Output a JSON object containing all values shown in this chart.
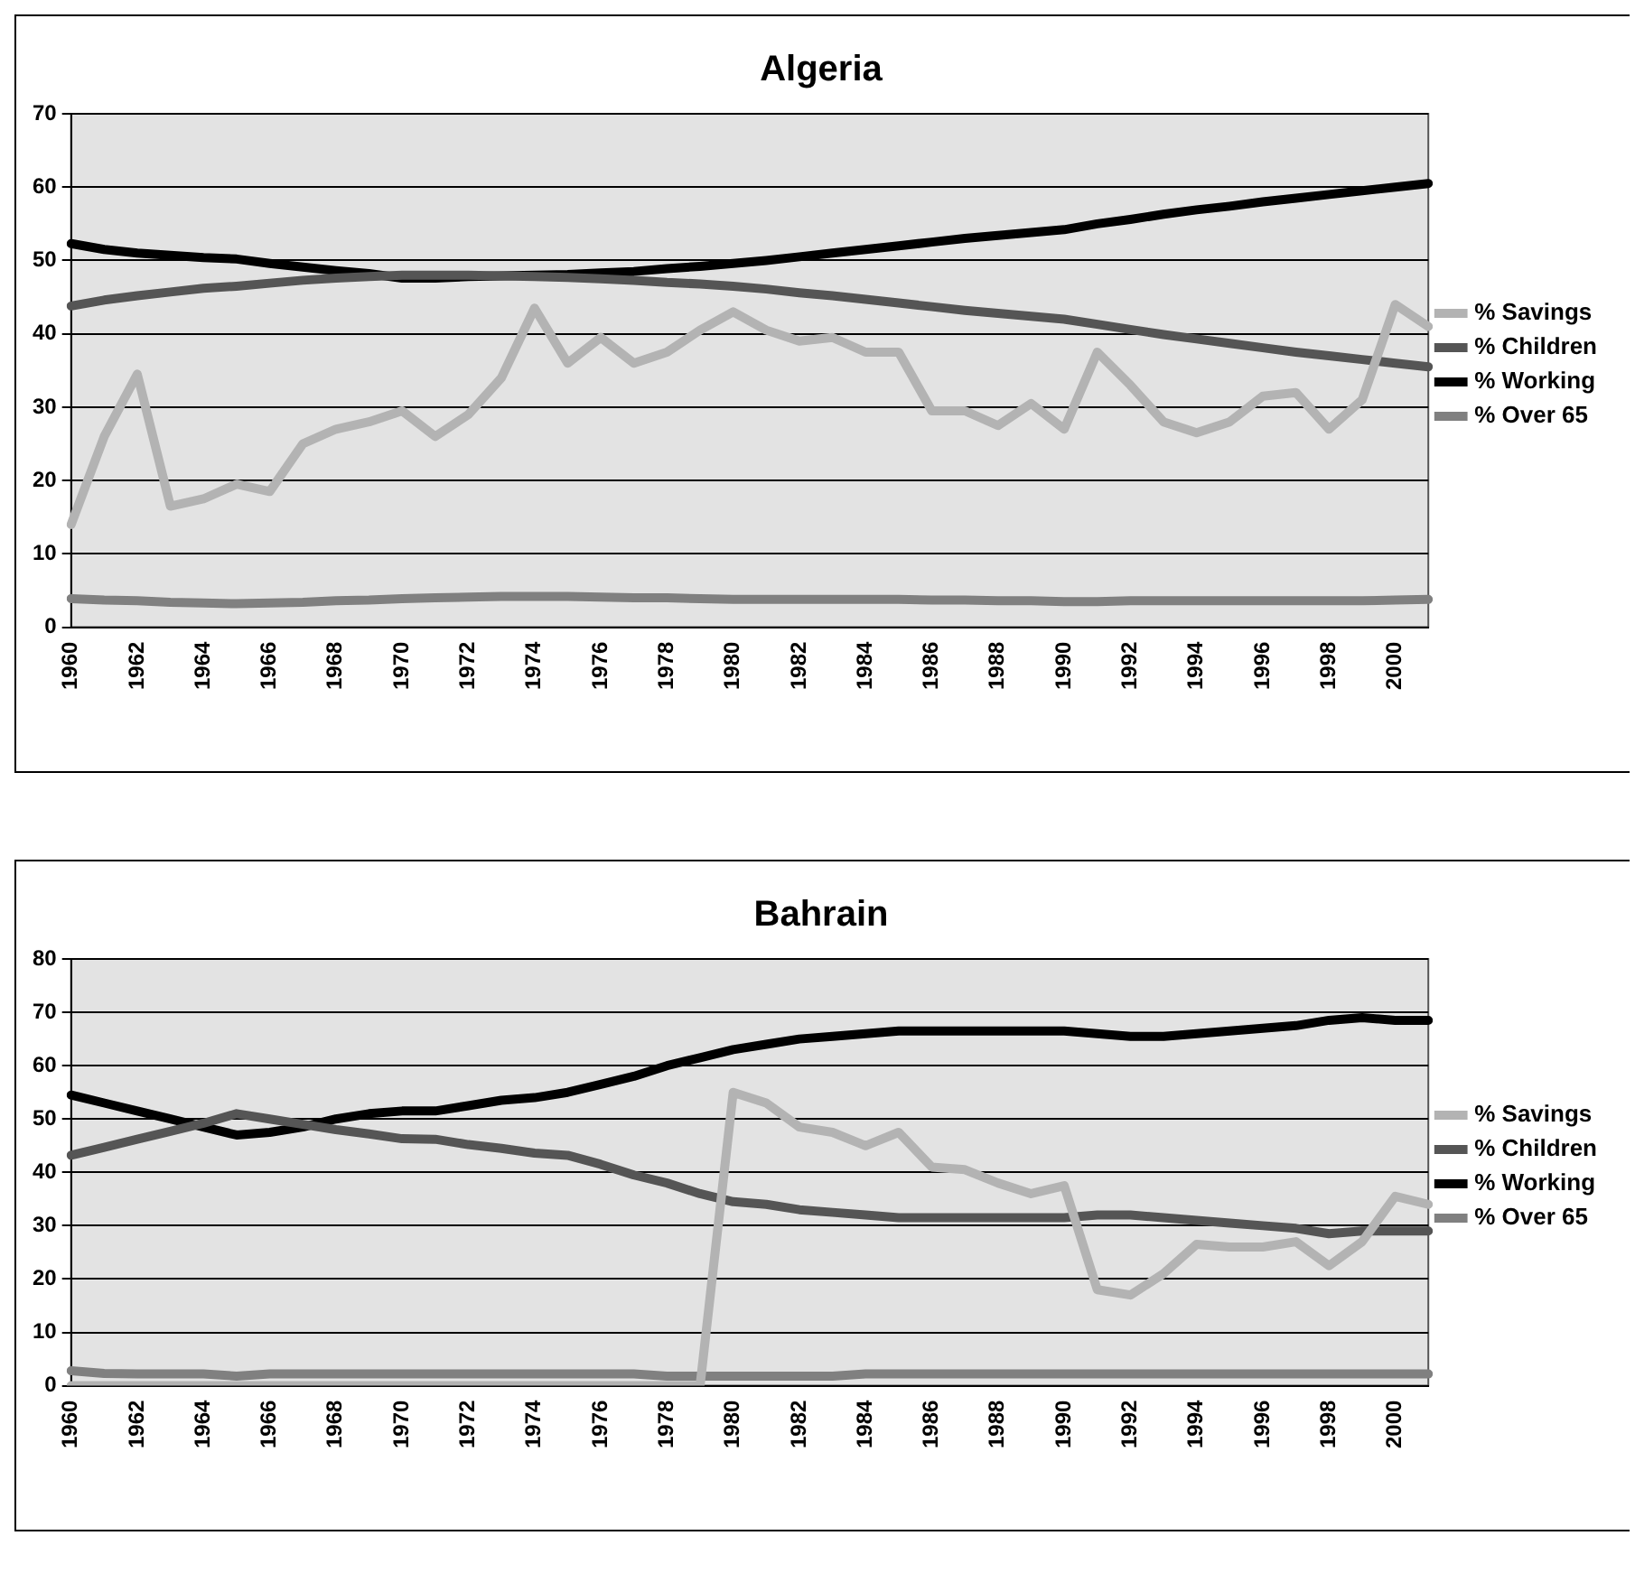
{
  "chart_data": [
    {
      "type": "line",
      "title": "Algeria",
      "categories": [
        "1960",
        null,
        "1962",
        null,
        "1964",
        null,
        "1966",
        null,
        "1968",
        null,
        "1970",
        null,
        "1972",
        null,
        "1974",
        null,
        "1976",
        null,
        "1978",
        null,
        "1980",
        null,
        "1982",
        null,
        "1984",
        null,
        "1986",
        null,
        "1988",
        null,
        "1990",
        null,
        "1992",
        null,
        "1994",
        null,
        "1996",
        null,
        "1998",
        null,
        "2000",
        null
      ],
      "series": [
        {
          "name": "% Savings",
          "color": "#b3b3b3",
          "values": [
            14,
            26,
            34.5,
            16.5,
            17.5,
            19.5,
            18.5,
            25,
            27,
            28,
            29.5,
            26,
            29,
            34,
            43.5,
            36,
            39.5,
            36,
            37.5,
            40.5,
            43,
            40.5,
            39,
            39.5,
            37.5,
            37.5,
            29.5,
            29.5,
            27.5,
            30.5,
            27,
            37.5,
            33,
            28,
            26.5,
            28,
            31.5,
            32,
            27,
            31,
            44,
            41
          ]
        },
        {
          "name": "% Children",
          "color": "#555555",
          "values": [
            43.8,
            44.6,
            45.2,
            45.7,
            46.2,
            46.5,
            46.9,
            47.3,
            47.6,
            47.8,
            48,
            48,
            48,
            47.9,
            47.8,
            47.7,
            47.5,
            47.3,
            47,
            46.8,
            46.5,
            46.1,
            45.6,
            45.2,
            44.7,
            44.2,
            43.7,
            43.2,
            42.8,
            42.4,
            42,
            41.3,
            40.6,
            39.9,
            39.3,
            38.7,
            38.1,
            37.5,
            37,
            36.5,
            36,
            35.5
          ]
        },
        {
          "name": "% Working",
          "color": "#000000",
          "values": [
            52.3,
            51.5,
            51,
            50.7,
            50.4,
            50.2,
            49.6,
            49.1,
            48.6,
            48.2,
            47.6,
            47.6,
            47.8,
            47.9,
            48,
            48.1,
            48.3,
            48.5,
            48.9,
            49.2,
            49.6,
            50,
            50.5,
            51,
            51.5,
            52,
            52.5,
            53,
            53.4,
            53.8,
            54.2,
            55,
            55.6,
            56.3,
            56.9,
            57.4,
            58,
            58.5,
            59,
            59.5,
            60,
            60.5
          ]
        },
        {
          "name": "% Over 65",
          "color": "#808080",
          "values": [
            3.9,
            3.7,
            3.6,
            3.4,
            3.3,
            3.2,
            3.3,
            3.4,
            3.6,
            3.7,
            3.9,
            4,
            4.1,
            4.2,
            4.2,
            4.2,
            4.1,
            4,
            4,
            3.9,
            3.8,
            3.8,
            3.8,
            3.8,
            3.8,
            3.8,
            3.7,
            3.7,
            3.6,
            3.6,
            3.5,
            3.5,
            3.6,
            3.6,
            3.6,
            3.6,
            3.6,
            3.6,
            3.6,
            3.6,
            3.7,
            3.8
          ]
        }
      ],
      "ylim": [
        0,
        70
      ],
      "yticks": [
        0,
        10,
        20,
        30,
        40,
        50,
        60,
        70
      ],
      "grid": "y",
      "legend": "right",
      "marker": "none",
      "line_style": "solid"
    },
    {
      "type": "line",
      "title": "Bahrain",
      "categories": [
        "1960",
        null,
        "1962",
        null,
        "1964",
        null,
        "1966",
        null,
        "1968",
        null,
        "1970",
        null,
        "1972",
        null,
        "1974",
        null,
        "1976",
        null,
        "1978",
        null,
        "1980",
        null,
        "1982",
        null,
        "1984",
        null,
        "1986",
        null,
        "1988",
        null,
        "1990",
        null,
        "1992",
        null,
        "1994",
        null,
        "1996",
        null,
        "1998",
        null,
        "2000",
        null
      ],
      "series": [
        {
          "name": "% Savings",
          "color": "#b3b3b3",
          "values": [
            0,
            0,
            0,
            0,
            0,
            0,
            0,
            0,
            0,
            0,
            0,
            0,
            0,
            0,
            0,
            0,
            0,
            0,
            0,
            0,
            55,
            53,
            48.5,
            47.5,
            45,
            47.5,
            41,
            40.5,
            38,
            36,
            37.5,
            18,
            17,
            21,
            26.5,
            26,
            26,
            27,
            22.5,
            27,
            35.5,
            34
          ]
        },
        {
          "name": "% Children",
          "color": "#555555",
          "values": [
            43.2,
            44.7,
            46.2,
            47.7,
            49.2,
            51,
            50,
            49,
            48,
            47.2,
            46.3,
            46.2,
            45.2,
            44.5,
            43.6,
            43.2,
            41.5,
            39.5,
            38,
            36,
            34.5,
            34,
            33,
            32.5,
            32,
            31.5,
            31.5,
            31.5,
            31.5,
            31.5,
            31.5,
            32,
            32,
            31.5,
            31,
            30.5,
            30,
            29.5,
            28.5,
            29,
            29,
            29
          ]
        },
        {
          "name": "% Working",
          "color": "#000000",
          "values": [
            54.5,
            53,
            51.5,
            50,
            48.5,
            47,
            47.5,
            48.5,
            50,
            51,
            51.5,
            51.5,
            52.5,
            53.5,
            54,
            55,
            56.5,
            58,
            60,
            61.5,
            63,
            64,
            65,
            65.5,
            66,
            66.5,
            66.5,
            66.5,
            66.5,
            66.5,
            66.5,
            66,
            65.5,
            65.5,
            66,
            66.5,
            67,
            67.5,
            68.5,
            69,
            68.5,
            68.5
          ]
        },
        {
          "name": "% Over 65",
          "color": "#808080",
          "values": [
            2.8,
            2.3,
            2.2,
            2.2,
            2.2,
            1.8,
            2.2,
            2.2,
            2.2,
            2.2,
            2.2,
            2.2,
            2.2,
            2.2,
            2.2,
            2.2,
            2.2,
            2.2,
            1.8,
            1.8,
            1.8,
            1.8,
            1.8,
            1.8,
            2.2,
            2.2,
            2.2,
            2.2,
            2.2,
            2.2,
            2.2,
            2.2,
            2.2,
            2.2,
            2.2,
            2.2,
            2.2,
            2.2,
            2.2,
            2.2,
            2.2,
            2.2
          ]
        }
      ],
      "ylim": [
        0,
        80
      ],
      "yticks": [
        0,
        10,
        20,
        30,
        40,
        50,
        60,
        70,
        80
      ],
      "grid": "y",
      "legend": "right",
      "marker": "none",
      "line_style": "solid"
    }
  ]
}
